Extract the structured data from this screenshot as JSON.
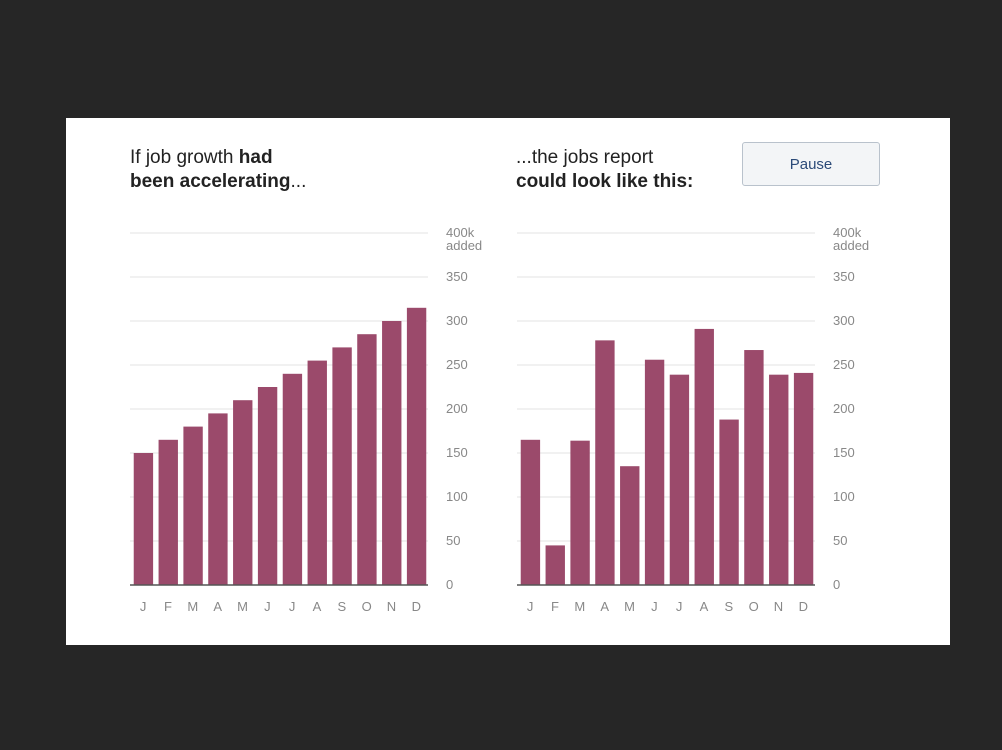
{
  "colors": {
    "bar": "#9b4a6b",
    "grid": "#e3e3e3",
    "axis": "#555555"
  },
  "left_headline": {
    "part1": "If job growth ",
    "bold1": "had",
    "bold2": "been accelerating",
    "part2": "..."
  },
  "right_headline": {
    "part1": "...the jobs report",
    "bold1": "could look like this:"
  },
  "pause_label": "Pause",
  "y_unit_label": "added",
  "chart_data": [
    {
      "type": "bar",
      "title": "If job growth had been accelerating...",
      "categories": [
        "J",
        "F",
        "M",
        "A",
        "M",
        "J",
        "J",
        "A",
        "S",
        "O",
        "N",
        "D"
      ],
      "values": [
        150,
        165,
        180,
        195,
        210,
        225,
        240,
        255,
        270,
        285,
        300,
        315
      ],
      "ylim": [
        0,
        400
      ],
      "yticks": [
        "0",
        "50",
        "100",
        "150",
        "200",
        "250",
        "300",
        "350",
        "400k"
      ],
      "grid": true
    },
    {
      "type": "bar",
      "title": "...the jobs report could look like this:",
      "categories": [
        "J",
        "F",
        "M",
        "A",
        "M",
        "J",
        "J",
        "A",
        "S",
        "O",
        "N",
        "D"
      ],
      "values": [
        165,
        45,
        164,
        278,
        135,
        256,
        239,
        291,
        188,
        267,
        239,
        241
      ],
      "ylim": [
        0,
        400
      ],
      "yticks": [
        "0",
        "50",
        "100",
        "150",
        "200",
        "250",
        "300",
        "350",
        "400k"
      ],
      "grid": true
    }
  ]
}
